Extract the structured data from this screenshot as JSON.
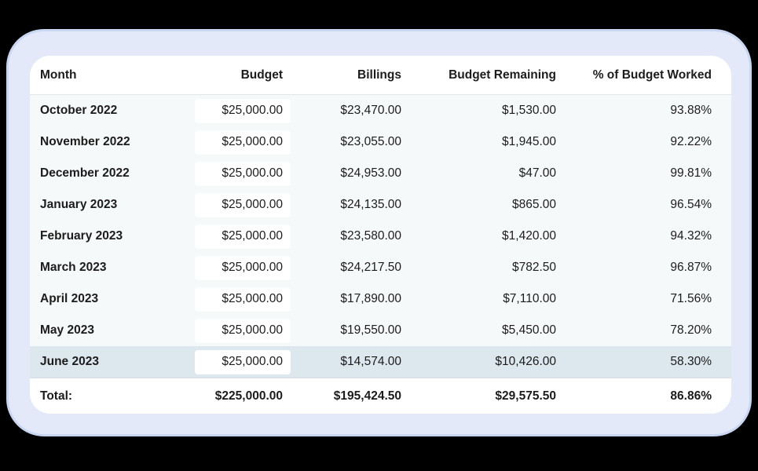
{
  "header": {
    "month": "Month",
    "budget": "Budget",
    "billings": "Billings",
    "remaining": "Budget Remaining",
    "percent": "% of Budget Worked"
  },
  "rows": [
    {
      "month": "October 2022",
      "budget": "$25,000.00",
      "billings": "$23,470.00",
      "remaining": "$1,530.00",
      "percent": "93.88%"
    },
    {
      "month": "November 2022",
      "budget": "$25,000.00",
      "billings": "$23,055.00",
      "remaining": "$1,945.00",
      "percent": "92.22%"
    },
    {
      "month": "December 2022",
      "budget": "$25,000.00",
      "billings": "$24,953.00",
      "remaining": "$47.00",
      "percent": "99.81%"
    },
    {
      "month": "January 2023",
      "budget": "$25,000.00",
      "billings": "$24,135.00",
      "remaining": "$865.00",
      "percent": "96.54%"
    },
    {
      "month": "February 2023",
      "budget": "$25,000.00",
      "billings": "$23,580.00",
      "remaining": "$1,420.00",
      "percent": "94.32%"
    },
    {
      "month": "March 2023",
      "budget": "$25,000.00",
      "billings": "$24,217.50",
      "remaining": "$782.50",
      "percent": "96.87%"
    },
    {
      "month": "April 2023",
      "budget": "$25,000.00",
      "billings": "$17,890.00",
      "remaining": "$7,110.00",
      "percent": "71.56%"
    },
    {
      "month": "May 2023",
      "budget": "$25,000.00",
      "billings": "$19,550.00",
      "remaining": "$5,450.00",
      "percent": "78.20%"
    },
    {
      "month": "June 2023",
      "budget": "$25,000.00",
      "billings": "$14,574.00",
      "remaining": "$10,426.00",
      "percent": "58.30%",
      "highlighted": true
    }
  ],
  "total": {
    "label": "Total:",
    "budget": "$225,000.00",
    "billings": "$195,424.50",
    "remaining": "$29,575.50",
    "percent": "86.86%"
  },
  "colors": {
    "page_background": "#000000",
    "card_background": "#e4e9fa",
    "card_border": "#c9d6f1",
    "table_background": "#ffffff",
    "body_row_background": "#f5f9fa",
    "highlight_row_background": "#dce8ee",
    "text": "#1c1c1c"
  }
}
